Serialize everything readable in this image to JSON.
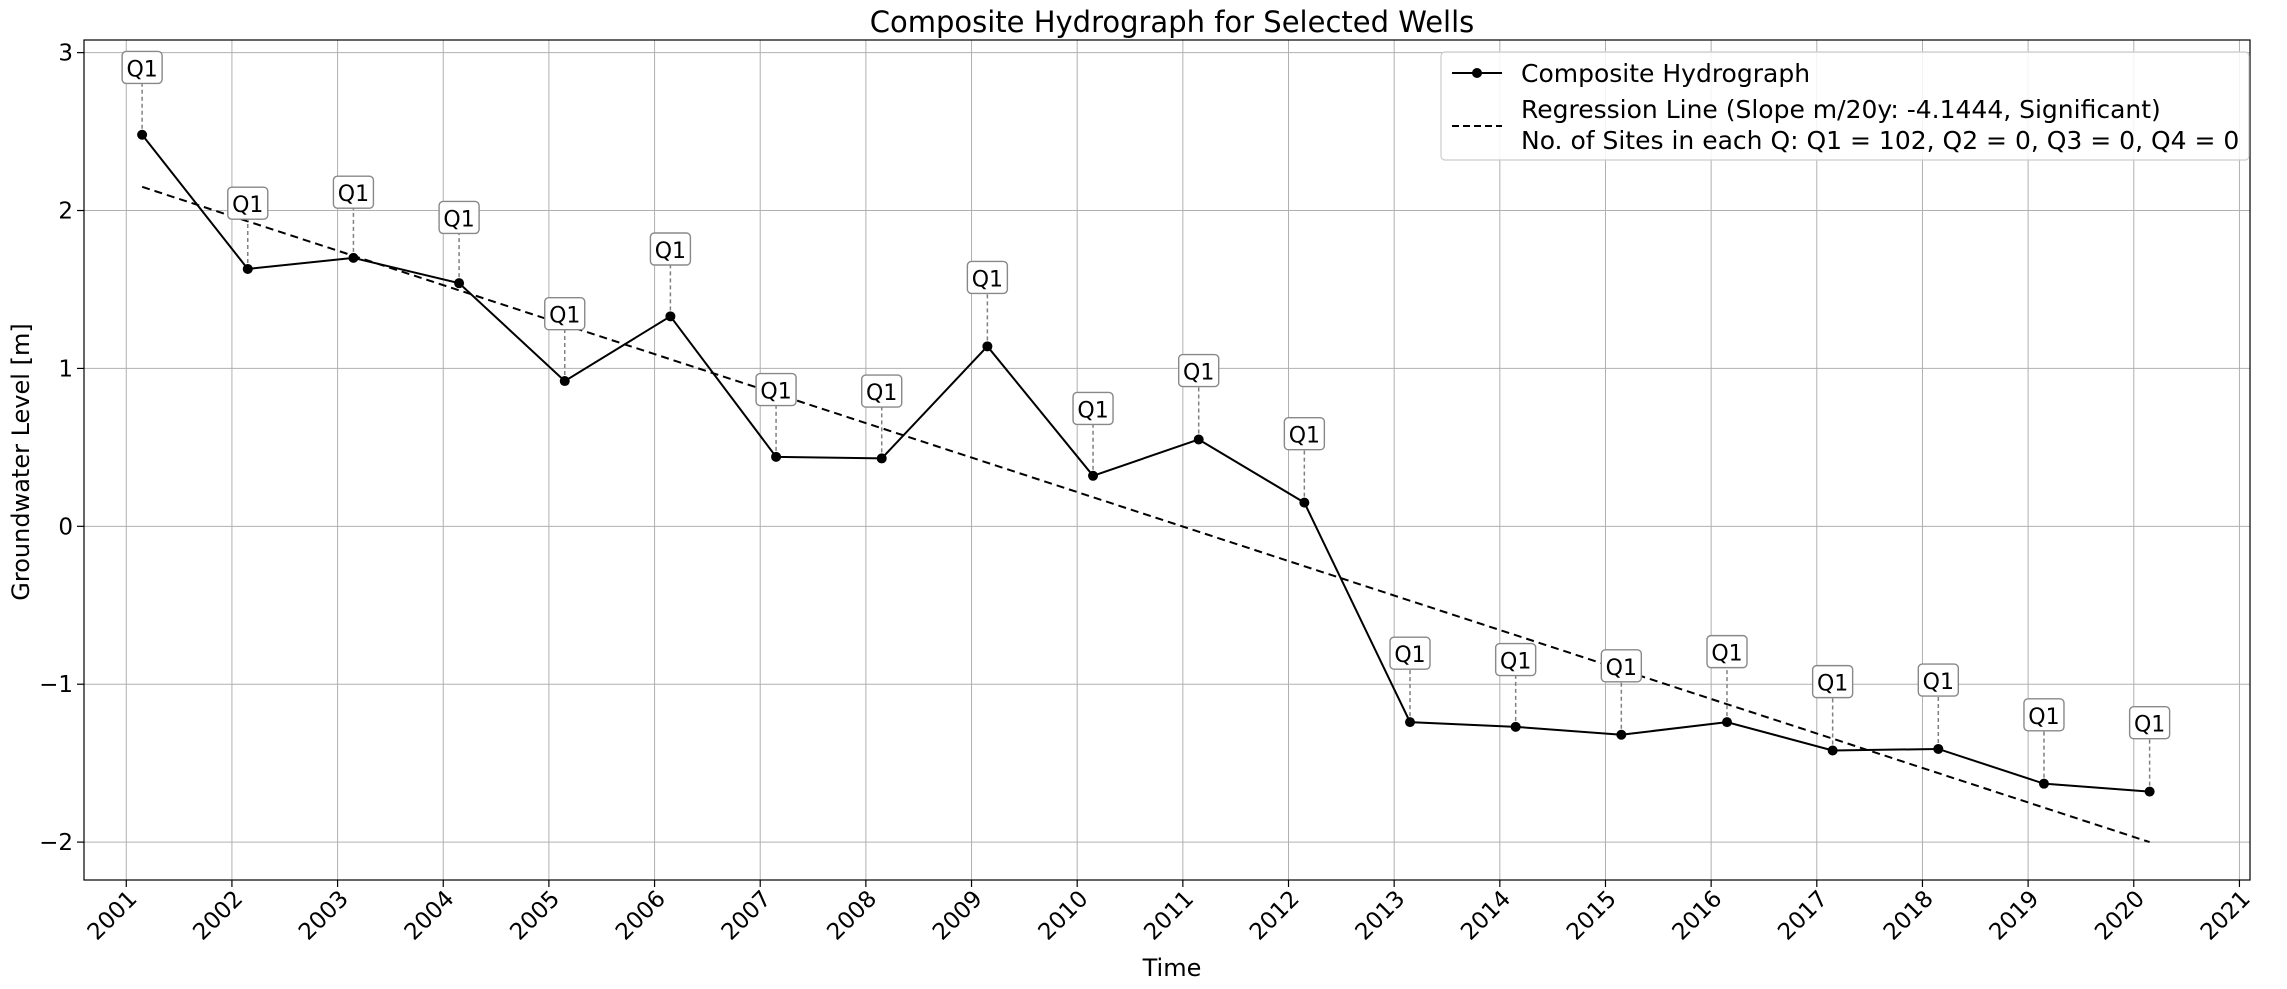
{
  "chart_data": {
    "type": "line",
    "title": "Composite Hydrograph for Selected Wells",
    "xlabel": "Time",
    "ylabel": "Groundwater Level [m]",
    "xlim": [
      2000.6,
      2021.1
    ],
    "ylim": [
      -2.24,
      3.08
    ],
    "x_ticks": [
      "2001",
      "2002",
      "2003",
      "2004",
      "2005",
      "2006",
      "2007",
      "2008",
      "2009",
      "2010",
      "2011",
      "2012",
      "2013",
      "2014",
      "2015",
      "2016",
      "2017",
      "2018",
      "2019",
      "2020",
      "2021"
    ],
    "y_ticks": [
      "−2",
      "−1",
      "0",
      "1",
      "2",
      "3"
    ],
    "y_tick_values": [
      -2,
      -1,
      0,
      1,
      2,
      3
    ],
    "grid": true,
    "legend_position": "top-right",
    "series": [
      {
        "name": "Composite Hydrograph",
        "style": "solid-with-markers",
        "color": "#000000",
        "x": [
          2001.15,
          2002.15,
          2003.15,
          2004.15,
          2005.15,
          2006.15,
          2007.15,
          2008.15,
          2009.15,
          2010.15,
          2011.15,
          2012.15,
          2013.15,
          2014.15,
          2015.15,
          2016.15,
          2017.15,
          2018.15,
          2019.15,
          2020.15
        ],
        "y": [
          2.48,
          1.63,
          1.7,
          1.54,
          0.92,
          1.33,
          0.44,
          0.43,
          1.14,
          0.32,
          0.55,
          0.15,
          -1.24,
          -1.27,
          -1.32,
          -1.24,
          -1.42,
          -1.41,
          -1.63,
          -1.68
        ],
        "annotations": [
          "Q1",
          "Q1",
          "Q1",
          "Q1",
          "Q1",
          "Q1",
          "Q1",
          "Q1",
          "Q1",
          "Q1",
          "Q1",
          "Q1",
          "Q1",
          "Q1",
          "Q1",
          "Q1",
          "Q1",
          "Q1",
          "Q1",
          "Q1"
        ],
        "annotation_y": [
          2.9,
          2.04,
          2.11,
          1.95,
          1.34,
          1.75,
          0.86,
          0.85,
          1.57,
          0.74,
          0.98,
          0.58,
          -0.81,
          -0.85,
          -0.89,
          -0.8,
          -0.99,
          -0.98,
          -1.2,
          -1.25
        ]
      },
      {
        "name": "Regression Line (Slope m/20y: -4.1444, Significant)",
        "style": "dashed",
        "color": "#000000",
        "x": [
          2001.15,
          2020.15
        ],
        "y": [
          2.15,
          -2.0
        ]
      }
    ],
    "legend_extra_line": "No. of Sites in each Q: Q1 = 102, Q2 = 0, Q3 = 0, Q4 = 0"
  }
}
